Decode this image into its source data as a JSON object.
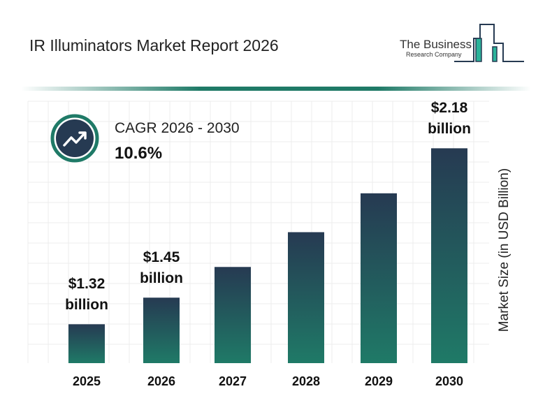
{
  "header": {
    "title": "IR Illuminators Market Report 2026"
  },
  "logo": {
    "line1": "The Business",
    "line2": "Research Company",
    "colors": {
      "dark": "#263a52",
      "accent": "#2bb39a"
    }
  },
  "cagr": {
    "label": "CAGR 2026 - 2030",
    "value": "10.6%",
    "icon": "trending-up-icon"
  },
  "colors": {
    "bar_top": "#263a52",
    "bar_bottom": "#1f7a67",
    "ring": "#1f7a67",
    "grid": "#ececec"
  },
  "chart_data": {
    "type": "bar",
    "categories": [
      "2025",
      "2026",
      "2027",
      "2028",
      "2029",
      "2030"
    ],
    "values": [
      1.32,
      1.45,
      1.6,
      1.77,
      1.96,
      2.18
    ],
    "data_labels": [
      [
        "$1.32",
        "billion"
      ],
      [
        "$1.45",
        "billion"
      ],
      null,
      null,
      null,
      [
        "$2.18",
        "billion"
      ]
    ],
    "title": "",
    "xlabel": "",
    "ylabel": "Market Size (in USD Billion)",
    "grid": true,
    "legend": "none"
  }
}
